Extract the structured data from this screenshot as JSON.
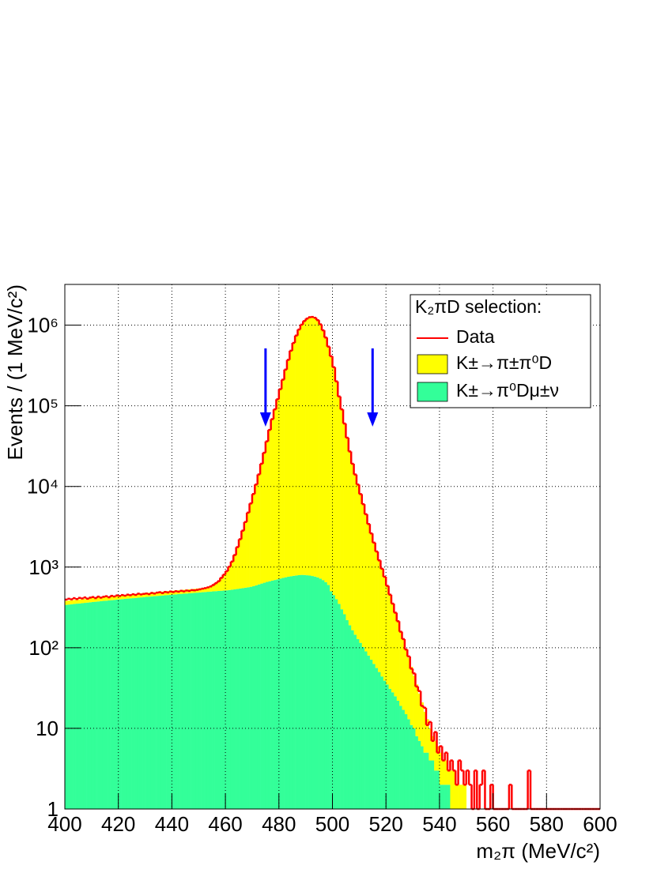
{
  "chart_data": {
    "type": "histogram",
    "y_label": "Events / (1 MeV/c²)",
    "x_label": "m₂π (MeV/c²)",
    "legend_title": "K₂πD selection:",
    "legend": "top-right",
    "grid": true,
    "log_y": true,
    "stacked": true,
    "xlim": [
      400,
      600
    ],
    "ylim": [
      1,
      3200000
    ],
    "xticks": [
      400,
      420,
      440,
      460,
      480,
      500,
      520,
      540,
      560,
      580,
      600
    ],
    "yticks": [
      1,
      10,
      {
        "value": 100,
        "label": "10²"
      },
      {
        "value": 1000,
        "label": "10³"
      },
      {
        "value": 10000,
        "label": "10⁴"
      },
      {
        "value": 100000,
        "label": "10⁵"
      },
      {
        "value": 1000000,
        "label": "10⁶"
      }
    ],
    "arrows_x": [
      475,
      515
    ],
    "arrow_color": "#0000ff",
    "bins": [
      400,
      401,
      402,
      403,
      404,
      405,
      406,
      407,
      408,
      409,
      410,
      411,
      412,
      413,
      414,
      415,
      416,
      417,
      418,
      419,
      420,
      421,
      422,
      423,
      424,
      425,
      426,
      427,
      428,
      429,
      430,
      431,
      432,
      433,
      434,
      435,
      436,
      437,
      438,
      439,
      440,
      441,
      442,
      443,
      444,
      445,
      446,
      447,
      448,
      449,
      450,
      451,
      452,
      453,
      454,
      455,
      456,
      457,
      458,
      459,
      460,
      461,
      462,
      463,
      464,
      465,
      466,
      467,
      468,
      469,
      470,
      471,
      472,
      473,
      474,
      475,
      476,
      477,
      478,
      479,
      480,
      481,
      482,
      483,
      484,
      485,
      486,
      487,
      488,
      489,
      490,
      491,
      492,
      493,
      494,
      495,
      496,
      497,
      498,
      499,
      500,
      501,
      502,
      503,
      504,
      505,
      506,
      507,
      508,
      509,
      510,
      511,
      512,
      513,
      514,
      515,
      516,
      517,
      518,
      519,
      520,
      521,
      522,
      523,
      524,
      525,
      526,
      527,
      528,
      529,
      530,
      531,
      532,
      533,
      534,
      535,
      536,
      537,
      538,
      539,
      540,
      541,
      542,
      543,
      544,
      545,
      546,
      547,
      548,
      549,
      550,
      551,
      552,
      553,
      554,
      555,
      556,
      557,
      558,
      559,
      560,
      561,
      562,
      563,
      564,
      565,
      566,
      567,
      568,
      569,
      570,
      571,
      572,
      573,
      574,
      575,
      576,
      577,
      578,
      579,
      580,
      581,
      582,
      583,
      584,
      585,
      586,
      587,
      588,
      589,
      590,
      591,
      592,
      593,
      594,
      595,
      596,
      597,
      598,
      599,
      600
    ],
    "series": [
      {
        "name": "Data",
        "color": "#ff0000",
        "histtype": "step",
        "values": [
          395,
          405,
          398,
          412,
          401,
          415,
          408,
          420,
          405,
          418,
          425,
          412,
          430,
          418,
          428,
          435,
          422,
          440,
          432,
          445,
          438,
          450,
          442,
          455,
          448,
          460,
          452,
          468,
          458,
          465,
          470,
          462,
          478,
          470,
          482,
          488,
          476,
          492,
          485,
          498,
          490,
          502,
          495,
          508,
          500,
          512,
          506,
          518,
          515,
          522,
          530,
          540,
          548,
          560,
          575,
          600,
          632,
          668,
          735,
          805,
          890,
          1012,
          1170,
          1410,
          1768,
          2215,
          2830,
          3620,
          4735,
          6150,
          8060,
          10570,
          14080,
          19110,
          26150,
          36200,
          50240,
          68310,
          90350,
          120480,
          160620,
          210870,
          281150,
          371400,
          481900,
          602300,
          742600,
          883100,
          1013600,
          1123800,
          1204200,
          1254500,
          1264400,
          1234100,
          1153900,
          1023500,
          863100,
          702500,
          542000,
          411600,
          301200,
          200800,
          130550,
          90320,
          60240,
          40180,
          27130,
          19090,
          14060,
          10550,
          8040,
          6030,
          4525,
          3420,
          2615,
          2010,
          1560,
          1210,
          955,
          758,
          585,
          455,
          352,
          272,
          213,
          158,
          128,
          95,
          78,
          55,
          48,
          33,
          29,
          19,
          18,
          11,
          12,
          7,
          9,
          5,
          6,
          4,
          5,
          3,
          4,
          3,
          2,
          4,
          3,
          2,
          3,
          2,
          1,
          3,
          1,
          2,
          3,
          1,
          1,
          2,
          1,
          0,
          1,
          0,
          0,
          0,
          2,
          0,
          0,
          0,
          0,
          0,
          0,
          3,
          0,
          0,
          0,
          0,
          0,
          0,
          0,
          0,
          0,
          0,
          0,
          0,
          0,
          0,
          0,
          0,
          0,
          0,
          0,
          0,
          0,
          0,
          0,
          0,
          0,
          0
        ]
      },
      {
        "name": "K±→π±π⁰D",
        "color": "#ffff00",
        "histtype": "filled",
        "values": [
          40,
          41,
          40,
          42,
          41,
          42,
          43,
          42,
          43,
          44,
          44,
          45,
          44,
          45,
          46,
          45,
          46,
          47,
          46,
          47,
          48,
          47,
          48,
          49,
          48,
          49,
          50,
          49,
          50,
          51,
          51,
          50,
          52,
          51,
          52,
          53,
          52,
          53,
          54,
          53,
          54,
          55,
          54,
          56,
          55,
          56,
          57,
          56,
          58,
          60,
          62,
          64,
          68,
          72,
          78,
          86,
          117,
          154,
          211,
          278,
          365,
          480,
          625,
          870,
          1214,
          1658,
          2252,
          3045,
          4138,
          5530,
          7420,
          9905,
          13390,
          18375,
          25360,
          35345,
          49332,
          67320,
          89308,
          119295,
          159280,
          209265,
          279252,
          369240,
          479230,
          599220,
          739212,
          879205,
          1009200,
          1119202,
          1199208,
          1249215,
          1259225,
          1229238,
          1149255,
          1019280,
          859310,
          699350,
          539400,
          409500,
          299550,
          199600,
          129650,
          89700,
          59740,
          39780,
          26810,
          18835,
          13855,
          10372,
          7885,
          5898,
          4410,
          3320,
          2529,
          1937,
          1494,
          1150,
          906,
          711,
          545,
          419,
          322,
          245,
          188,
          141,
          108,
          82,
          62,
          47,
          35,
          27,
          20,
          15,
          11,
          8,
          6,
          4,
          4,
          3,
          3,
          2,
          2,
          1,
          2,
          2,
          1,
          1,
          1,
          1,
          1,
          1,
          1,
          1,
          1,
          0,
          0,
          0,
          0,
          0,
          0,
          0,
          0,
          0,
          0,
          0,
          0,
          0,
          0,
          0,
          0,
          0,
          0,
          0,
          0,
          0,
          0,
          0,
          0,
          0,
          0,
          0,
          0,
          0,
          0,
          0,
          0,
          0,
          0,
          0,
          0,
          0,
          0,
          0,
          0,
          0,
          0,
          0,
          0,
          0
        ]
      },
      {
        "name": "K±→π⁰Dμ±ν",
        "color": "#33ff99",
        "histtype": "filled",
        "values": [
          340,
          343,
          346,
          349,
          352,
          354,
          357,
          360,
          363,
          366,
          369,
          372,
          375,
          378,
          381,
          383,
          386,
          389,
          392,
          395,
          398,
          401,
          404,
          407,
          410,
          412,
          415,
          418,
          421,
          424,
          427,
          430,
          433,
          436,
          439,
          441,
          444,
          447,
          450,
          453,
          456,
          459,
          462,
          465,
          468,
          470,
          473,
          476,
          479,
          482,
          485,
          488,
          491,
          494,
          497,
          500,
          503,
          506,
          509,
          512,
          515,
          520,
          525,
          530,
          536,
          542,
          548,
          555,
          562,
          570,
          580,
          595,
          610,
          625,
          640,
          655,
          668,
          680,
          692,
          705,
          720,
          735,
          748,
          760,
          770,
          780,
          788,
          795,
          800,
          798,
          792,
          785,
          775,
          762,
          745,
          720,
          690,
          650,
          600,
          500,
          450,
          400,
          350,
          300,
          260,
          220,
          190,
          165,
          145,
          128,
          115,
          102,
          90,
          80,
          71,
          63,
          56,
          50,
          44,
          39,
          35,
          31,
          28,
          25,
          22,
          19,
          17,
          15,
          13,
          11,
          10,
          8,
          7,
          6,
          5,
          5,
          4,
          4,
          3,
          3,
          2,
          2,
          2,
          2,
          1,
          1,
          1,
          1,
          1,
          1,
          0,
          0,
          0,
          0,
          0,
          0,
          0,
          0,
          0,
          0,
          0,
          0,
          0,
          0,
          0,
          0,
          0,
          0,
          0,
          0,
          0,
          0,
          0,
          0,
          0,
          0,
          0,
          0,
          0,
          0,
          0,
          0,
          0,
          0,
          0,
          0,
          0,
          0,
          0,
          0,
          0,
          0,
          0,
          0,
          0,
          0,
          0,
          0,
          0,
          0
        ]
      }
    ]
  }
}
